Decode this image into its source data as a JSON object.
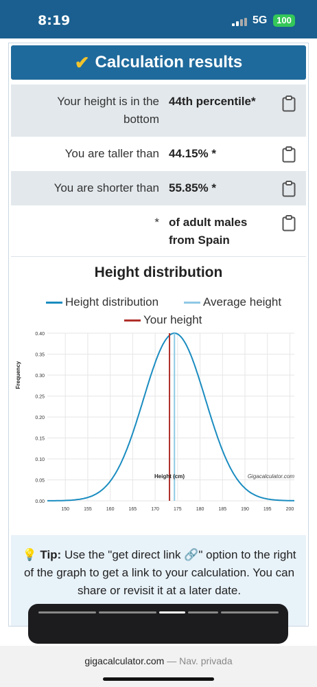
{
  "status": {
    "time": "8:19",
    "network": "5G",
    "battery": "100"
  },
  "header": {
    "title": "Calculation results"
  },
  "results": [
    {
      "label": "Your height is in the bottom",
      "value": "44th percentile*"
    },
    {
      "label": "You are taller than",
      "value": "44.15% *"
    },
    {
      "label": "You are shorter than",
      "value": "55.85% *"
    },
    {
      "label": "*",
      "value": "of adult males from Spain"
    }
  ],
  "chart_data": {
    "type": "line",
    "title": "Height distribution",
    "xlabel": "Height (cm)",
    "ylabel": "Frequency",
    "xlim": [
      146,
      201
    ],
    "ylim": [
      0,
      0.4
    ],
    "x_ticks": [
      150,
      155,
      160,
      165,
      170,
      175,
      180,
      185,
      190,
      195,
      200
    ],
    "y_ticks": [
      0.0,
      0.05,
      0.1,
      0.15,
      0.2,
      0.25,
      0.3,
      0.35,
      0.4
    ],
    "mean": 174.3,
    "sd": 6.9,
    "peak": 0.4,
    "your_height": 173.2,
    "legend": [
      "Height distribution",
      "Average height",
      "Your height"
    ],
    "colors": {
      "distribution": "#1a8cc0",
      "average": "#8ec9e4",
      "yours": "#b0302a"
    },
    "credit": "Gigacalculator.com"
  },
  "tip": {
    "label": "Tip:",
    "text_before": "Use the \"get direct link",
    "text_after": "\" option to the right of the graph to get a link to your calculation. You can share or revisit it at a later date."
  },
  "browser": {
    "url": "gigacalculator.com",
    "mode": "— Nav. privada"
  }
}
